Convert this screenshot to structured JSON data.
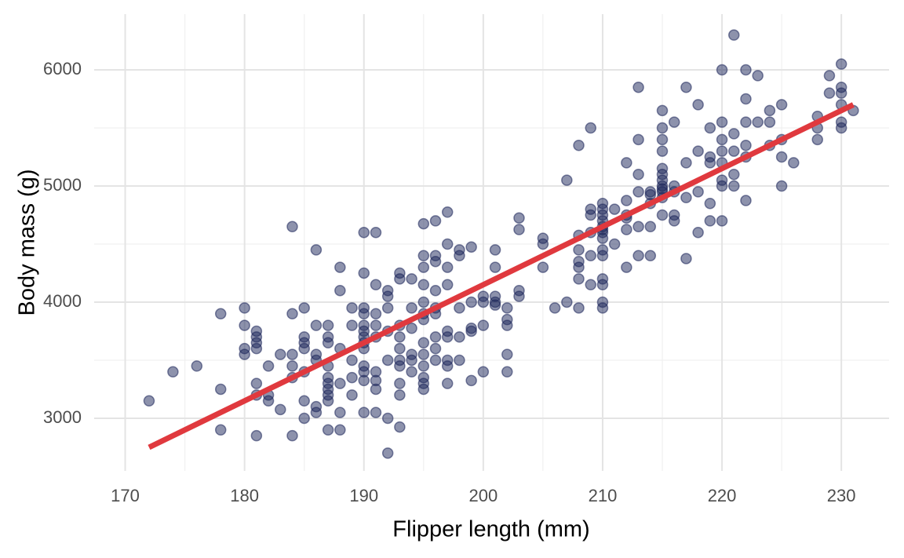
{
  "chart_data": {
    "type": "scatter",
    "x_label": "Flipper length (mm)",
    "y_label": "Body mass (g)",
    "color": "#1c2559",
    "xlim": [
      167.4,
      234
    ],
    "ylim": [
      2547,
      6480
    ],
    "xticks": [
      170,
      180,
      190,
      200,
      210,
      220,
      230
    ],
    "yticks": [
      3000,
      4000,
      5000,
      6000
    ],
    "x_minor_grid": [
      175,
      185,
      195,
      205,
      215,
      225
    ],
    "y_minor_grid": [
      3500,
      4500,
      5500
    ],
    "grid": true,
    "x": [
      172,
      174,
      176,
      178,
      178,
      178,
      180,
      180,
      180,
      180,
      181,
      181,
      181,
      181,
      181,
      181,
      181,
      182,
      182,
      182,
      183,
      183,
      184,
      184,
      184,
      184,
      184,
      184,
      185,
      185,
      185,
      185,
      185,
      185,
      185,
      186,
      186,
      186,
      186,
      186,
      186,
      187,
      187,
      187,
      187,
      187,
      187,
      187,
      187,
      187,
      187,
      188,
      188,
      188,
      188,
      188,
      188,
      189,
      189,
      189,
      189,
      189,
      190,
      190,
      190,
      190,
      190,
      190,
      190,
      190,
      190,
      190,
      190,
      190,
      190,
      191,
      191,
      191,
      191,
      191,
      191,
      191,
      191,
      191,
      192,
      192,
      192,
      192,
      192,
      192,
      192,
      193,
      193,
      193,
      193,
      193,
      193,
      193,
      193,
      193,
      193,
      194,
      194,
      194,
      194,
      194,
      194,
      195,
      195,
      195,
      195,
      195,
      195,
      195,
      195,
      195,
      195,
      195,
      195,
      195,
      196,
      196,
      196,
      196,
      196,
      196,
      196,
      196,
      196,
      197,
      197,
      197,
      197,
      197,
      197,
      197,
      197,
      197,
      198,
      198,
      198,
      198,
      198,
      199,
      199,
      199,
      199,
      199,
      200,
      200,
      200,
      200,
      201,
      201,
      201,
      201,
      201,
      202,
      202,
      202,
      202,
      202,
      203,
      203,
      203,
      203,
      205,
      205,
      205,
      206,
      207,
      207,
      208,
      208,
      208,
      208,
      208,
      208,
      208,
      209,
      209,
      209,
      209,
      209,
      209,
      210,
      210,
      210,
      210,
      210,
      210,
      210,
      210,
      210,
      210,
      210,
      210,
      210,
      210,
      211,
      211,
      212,
      212,
      212,
      212,
      212,
      212,
      213,
      213,
      213,
      213,
      213,
      213,
      214,
      214,
      214,
      214,
      214,
      215,
      215,
      215,
      215,
      215,
      215,
      215,
      215,
      215,
      215,
      215,
      215,
      216,
      216,
      216,
      216,
      216,
      217,
      217,
      217,
      217,
      218,
      218,
      218,
      218,
      219,
      219,
      219,
      219,
      219,
      220,
      220,
      220,
      220,
      220,
      220,
      220,
      220,
      221,
      221,
      221,
      221,
      221,
      222,
      222,
      222,
      222,
      222,
      222,
      223,
      223,
      224,
      224,
      224,
      225,
      225,
      225,
      225,
      226,
      228,
      228,
      228,
      229,
      229,
      230,
      230,
      230,
      230,
      230,
      230,
      231
    ],
    "values": [
      3150,
      3400,
      3450,
      3250,
      3900,
      2900,
      3800,
      3950,
      3600,
      3550,
      3300,
      3700,
      3750,
      3650,
      3600,
      3200,
      2850,
      3450,
      3200,
      3150,
      3550,
      3075,
      3900,
      4650,
      3550,
      3450,
      3350,
      2850,
      3700,
      3650,
      3600,
      3400,
      3950,
      3150,
      3000,
      3800,
      4450,
      3550,
      3500,
      3100,
      3050,
      3800,
      3650,
      3700,
      3450,
      3350,
      3300,
      3250,
      3200,
      3150,
      2900,
      4300,
      4100,
      3600,
      3300,
      3050,
      2900,
      3950,
      3800,
      3500,
      3350,
      3200,
      4600,
      4250,
      3950,
      3900,
      3800,
      3750,
      3700,
      3650,
      3600,
      3450,
      3400,
      3325,
      3050,
      4600,
      4150,
      3900,
      3800,
      3700,
      3400,
      3325,
      3050,
      3250,
      4100,
      4050,
      3950,
      3750,
      3500,
      3000,
      2700,
      4250,
      4200,
      3800,
      3700,
      3600,
      3500,
      3450,
      3300,
      3200,
      2925,
      4200,
      3950,
      3775,
      3550,
      3500,
      3400,
      4675,
      4400,
      4300,
      4150,
      4000,
      3900,
      3850,
      3650,
      3550,
      3450,
      3350,
      3300,
      3250,
      4700,
      4400,
      4350,
      4100,
      3950,
      3900,
      3700,
      3600,
      3500,
      4775,
      4500,
      4300,
      4150,
      3750,
      3700,
      3500,
      3450,
      3300,
      4450,
      4400,
      3950,
      3700,
      3500,
      4475,
      4000,
      3775,
      3750,
      3325,
      4050,
      4000,
      3800,
      3400,
      4450,
      4300,
      4050,
      3975,
      4000,
      3950,
      3850,
      3800,
      3550,
      3400,
      4725,
      4625,
      4100,
      4050,
      4550,
      4500,
      4300,
      3950,
      5050,
      4000,
      5350,
      4575,
      4450,
      4350,
      4300,
      4200,
      3950,
      5500,
      4800,
      4750,
      4600,
      4400,
      4150,
      4850,
      4800,
      4750,
      4700,
      4650,
      4625,
      4600,
      4550,
      4450,
      4400,
      4200,
      4150,
      4000,
      3950,
      4800,
      4500,
      5200,
      4875,
      4750,
      4725,
      4625,
      4300,
      5850,
      5400,
      5100,
      4950,
      4650,
      4400,
      4950,
      4925,
      4850,
      4650,
      4400,
      5650,
      5500,
      5400,
      5300,
      5150,
      5100,
      5050,
      5000,
      4975,
      4950,
      4900,
      4750,
      5550,
      5000,
      4950,
      4750,
      4700,
      5850,
      5200,
      4900,
      4375,
      5700,
      5300,
      4950,
      4600,
      5500,
      5250,
      5200,
      4850,
      4700,
      6000,
      5550,
      5400,
      5300,
      5200,
      5050,
      5000,
      4700,
      6300,
      5450,
      5300,
      5100,
      5000,
      6000,
      5750,
      5550,
      5350,
      5250,
      4875,
      5950,
      5550,
      5650,
      5550,
      5350,
      5700,
      5400,
      5250,
      5000,
      5200,
      5600,
      5500,
      5400,
      5950,
      5800,
      6050,
      5850,
      5800,
      5700,
      5550,
      5500,
      5650
    ],
    "trend_line": {
      "x": [
        172,
        231
      ],
      "values": [
        2750,
        5700
      ],
      "color": "#e0393e"
    }
  }
}
